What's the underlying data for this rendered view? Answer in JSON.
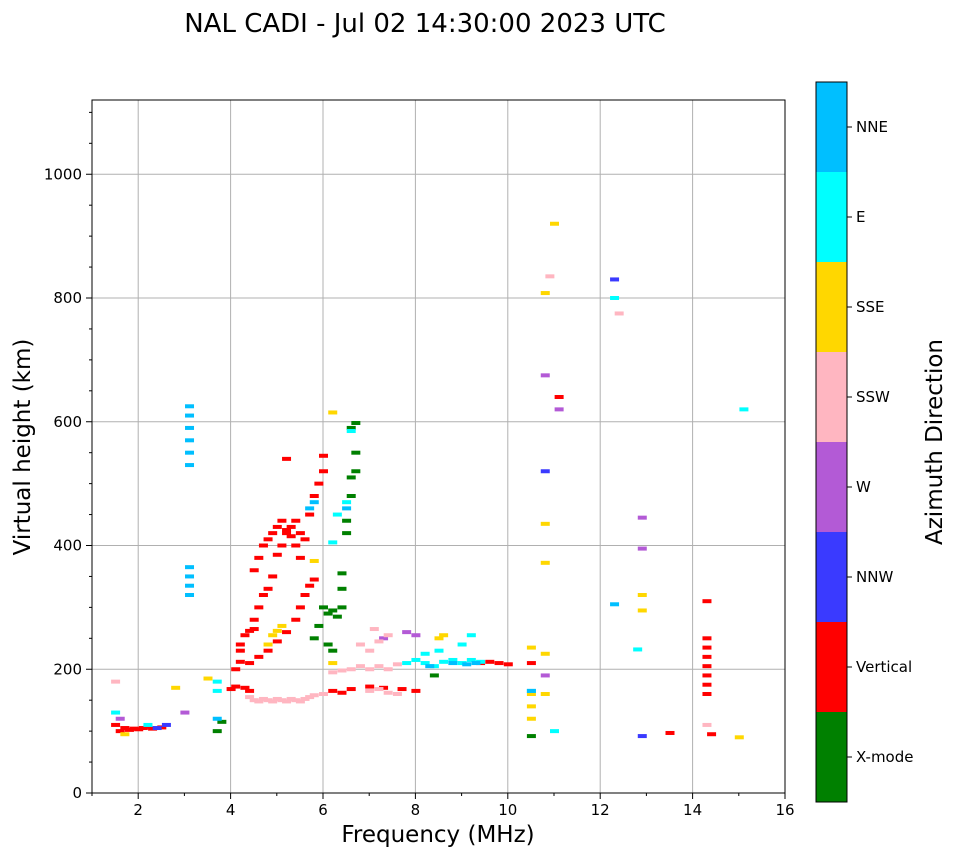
{
  "chart_data": {
    "type": "scatter",
    "title": "NAL CADI - Jul 02 14:30:00 2023 UTC",
    "xlabel": "Frequency (MHz)",
    "ylabel": "Virtual height (km)",
    "xlim": [
      1,
      16
    ],
    "ylim": [
      0,
      1120
    ],
    "xticks": [
      2,
      4,
      6,
      8,
      10,
      12,
      14,
      16
    ],
    "yticks": [
      0,
      200,
      400,
      600,
      800,
      1000
    ],
    "grid": true,
    "colorbar": {
      "label": "Azimuth Direction",
      "categories": [
        {
          "name": "X-mode",
          "color": "#008000"
        },
        {
          "name": "Vertical",
          "color": "#ff0000"
        },
        {
          "name": "NNW",
          "color": "#3a3aff"
        },
        {
          "name": "W",
          "color": "#b35ad6"
        },
        {
          "name": "SSW",
          "color": "#ffb6c1"
        },
        {
          "name": "SSE",
          "color": "#ffd700"
        },
        {
          "name": "E",
          "color": "#00ffff"
        },
        {
          "name": "NNE",
          "color": "#00bfff"
        }
      ]
    },
    "series": [
      {
        "name": "Vertical",
        "points": [
          [
            1.5,
            110
          ],
          [
            1.6,
            100
          ],
          [
            1.7,
            105
          ],
          [
            1.8,
            102
          ],
          [
            1.9,
            104
          ],
          [
            2.0,
            103
          ],
          [
            2.1,
            105
          ],
          [
            2.2,
            107
          ],
          [
            2.3,
            104
          ],
          [
            2.5,
            106
          ],
          [
            4.0,
            168
          ],
          [
            4.1,
            172
          ],
          [
            4.1,
            200
          ],
          [
            4.2,
            212
          ],
          [
            4.2,
            230
          ],
          [
            4.3,
            170
          ],
          [
            4.4,
            165
          ],
          [
            4.2,
            240
          ],
          [
            4.3,
            255
          ],
          [
            4.4,
            262
          ],
          [
            4.5,
            265
          ],
          [
            4.5,
            280
          ],
          [
            4.6,
            300
          ],
          [
            4.7,
            320
          ],
          [
            4.8,
            330
          ],
          [
            4.9,
            350
          ],
          [
            5.0,
            385
          ],
          [
            5.1,
            400
          ],
          [
            5.2,
            420
          ],
          [
            5.3,
            430
          ],
          [
            5.4,
            440
          ],
          [
            5.5,
            420
          ],
          [
            5.6,
            410
          ],
          [
            5.7,
            450
          ],
          [
            5.8,
            480
          ],
          [
            5.9,
            500
          ],
          [
            4.5,
            360
          ],
          [
            4.6,
            380
          ],
          [
            4.7,
            400
          ],
          [
            4.8,
            410
          ],
          [
            4.9,
            420
          ],
          [
            5.0,
            430
          ],
          [
            5.1,
            440
          ],
          [
            5.2,
            425
          ],
          [
            5.3,
            415
          ],
          [
            5.4,
            400
          ],
          [
            5.5,
            380
          ],
          [
            4.4,
            210
          ],
          [
            4.6,
            220
          ],
          [
            4.8,
            230
          ],
          [
            5.0,
            245
          ],
          [
            5.2,
            260
          ],
          [
            5.4,
            280
          ],
          [
            5.5,
            300
          ],
          [
            5.6,
            320
          ],
          [
            5.7,
            335
          ],
          [
            5.8,
            345
          ],
          [
            5.2,
            540
          ],
          [
            6.0,
            520
          ],
          [
            6.0,
            545
          ],
          [
            6.2,
            165
          ],
          [
            6.4,
            162
          ],
          [
            6.6,
            168
          ],
          [
            7.0,
            172
          ],
          [
            7.3,
            170
          ],
          [
            7.7,
            168
          ],
          [
            8.0,
            165
          ],
          [
            9.4,
            210
          ],
          [
            9.6,
            212
          ],
          [
            9.8,
            210
          ],
          [
            10.0,
            208
          ],
          [
            10.5,
            210
          ],
          [
            11.1,
            640
          ],
          [
            14.3,
            310
          ],
          [
            14.4,
            95
          ],
          [
            13.5,
            97
          ],
          [
            14.3,
            160
          ],
          [
            14.3,
            175
          ],
          [
            14.3,
            190
          ],
          [
            14.3,
            205
          ],
          [
            14.3,
            220
          ],
          [
            14.3,
            235
          ],
          [
            14.3,
            250
          ]
        ]
      },
      {
        "name": "X-mode",
        "points": [
          [
            6.0,
            300
          ],
          [
            6.1,
            290
          ],
          [
            6.2,
            295
          ],
          [
            6.3,
            285
          ],
          [
            6.4,
            300
          ],
          [
            6.4,
            330
          ],
          [
            6.4,
            355
          ],
          [
            6.5,
            420
          ],
          [
            6.5,
            440
          ],
          [
            6.6,
            480
          ],
          [
            6.6,
            510
          ],
          [
            6.7,
            520
          ],
          [
            6.7,
            550
          ],
          [
            6.6,
            590
          ],
          [
            6.7,
            598
          ],
          [
            5.9,
            270
          ],
          [
            5.8,
            250
          ],
          [
            6.1,
            240
          ],
          [
            6.2,
            230
          ],
          [
            8.4,
            190
          ],
          [
            10.5,
            92
          ],
          [
            3.7,
            100
          ],
          [
            3.8,
            115
          ]
        ]
      },
      {
        "name": "NNW",
        "points": [
          [
            12.3,
            830
          ],
          [
            10.8,
            520
          ],
          [
            12.9,
            92
          ],
          [
            2.4,
            105
          ],
          [
            2.6,
            110
          ]
        ]
      },
      {
        "name": "W",
        "points": [
          [
            12.9,
            445
          ],
          [
            12.9,
            395
          ],
          [
            10.8,
            675
          ],
          [
            11.1,
            620
          ],
          [
            3.0,
            130
          ],
          [
            7.8,
            260
          ],
          [
            8.0,
            255
          ],
          [
            10.8,
            190
          ],
          [
            1.6,
            120
          ],
          [
            7.3,
            250
          ]
        ]
      },
      {
        "name": "SSW",
        "points": [
          [
            4.4,
            155
          ],
          [
            4.5,
            150
          ],
          [
            4.6,
            148
          ],
          [
            4.7,
            152
          ],
          [
            4.8,
            150
          ],
          [
            4.9,
            148
          ],
          [
            5.0,
            152
          ],
          [
            5.1,
            150
          ],
          [
            5.2,
            148
          ],
          [
            5.3,
            152
          ],
          [
            5.4,
            150
          ],
          [
            5.5,
            148
          ],
          [
            5.6,
            152
          ],
          [
            5.7,
            155
          ],
          [
            5.8,
            158
          ],
          [
            6.0,
            160
          ],
          [
            6.2,
            195
          ],
          [
            6.4,
            198
          ],
          [
            6.6,
            200
          ],
          [
            6.8,
            205
          ],
          [
            7.0,
            200
          ],
          [
            7.2,
            205
          ],
          [
            7.4,
            200
          ],
          [
            7.6,
            208
          ],
          [
            7.0,
            165
          ],
          [
            7.2,
            168
          ],
          [
            7.4,
            162
          ],
          [
            7.6,
            160
          ],
          [
            7.0,
            230
          ],
          [
            7.2,
            245
          ],
          [
            7.4,
            255
          ],
          [
            7.1,
            265
          ],
          [
            10.9,
            835
          ],
          [
            12.4,
            775
          ],
          [
            1.5,
            180
          ],
          [
            14.3,
            110
          ],
          [
            6.8,
            240
          ]
        ]
      },
      {
        "name": "SSE",
        "points": [
          [
            11.0,
            920
          ],
          [
            10.8,
            808
          ],
          [
            10.8,
            435
          ],
          [
            10.8,
            372
          ],
          [
            12.9,
            320
          ],
          [
            12.9,
            295
          ],
          [
            10.5,
            235
          ],
          [
            10.5,
            160
          ],
          [
            10.5,
            140
          ],
          [
            10.5,
            120
          ],
          [
            10.8,
            225
          ],
          [
            10.8,
            160
          ],
          [
            15.0,
            90
          ],
          [
            6.2,
            615
          ],
          [
            5.8,
            375
          ],
          [
            6.2,
            210
          ],
          [
            4.8,
            240
          ],
          [
            4.9,
            255
          ],
          [
            5.0,
            262
          ],
          [
            5.1,
            270
          ],
          [
            8.5,
            250
          ],
          [
            8.6,
            255
          ],
          [
            1.7,
            95
          ],
          [
            2.8,
            170
          ],
          [
            3.5,
            185
          ]
        ]
      },
      {
        "name": "E",
        "points": [
          [
            15.1,
            620
          ],
          [
            12.3,
            800
          ],
          [
            12.8,
            232
          ],
          [
            11.0,
            100
          ],
          [
            10.5,
            165
          ],
          [
            7.8,
            210
          ],
          [
            8.0,
            215
          ],
          [
            8.2,
            210
          ],
          [
            8.4,
            205
          ],
          [
            8.6,
            212
          ],
          [
            8.8,
            215
          ],
          [
            9.0,
            210
          ],
          [
            9.2,
            215
          ],
          [
            9.4,
            212
          ],
          [
            8.2,
            225
          ],
          [
            8.5,
            230
          ],
          [
            9.0,
            240
          ],
          [
            9.2,
            255
          ],
          [
            3.7,
            165
          ],
          [
            3.7,
            180
          ],
          [
            6.6,
            585
          ],
          [
            6.3,
            450
          ],
          [
            6.2,
            405
          ],
          [
            6.5,
            470
          ],
          [
            1.5,
            130
          ],
          [
            2.2,
            110
          ]
        ]
      },
      {
        "name": "NNE",
        "points": [
          [
            3.1,
            530
          ],
          [
            3.1,
            550
          ],
          [
            3.1,
            570
          ],
          [
            3.1,
            590
          ],
          [
            3.1,
            610
          ],
          [
            3.1,
            625
          ],
          [
            3.1,
            320
          ],
          [
            3.1,
            335
          ],
          [
            3.1,
            350
          ],
          [
            3.1,
            365
          ],
          [
            12.3,
            305
          ],
          [
            10.5,
            165
          ],
          [
            8.3,
            205
          ],
          [
            8.8,
            210
          ],
          [
            9.1,
            208
          ],
          [
            9.3,
            210
          ],
          [
            5.7,
            460
          ],
          [
            5.8,
            470
          ],
          [
            6.5,
            460
          ],
          [
            3.7,
            120
          ]
        ]
      }
    ]
  }
}
